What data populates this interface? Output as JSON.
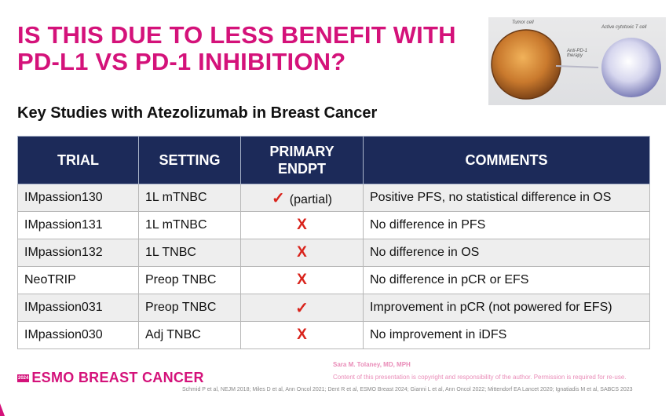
{
  "title": {
    "line1": "IS THIS DUE TO LESS BENEFIT WITH",
    "line2": "PD-L1 VS PD-1 INHIBITION?"
  },
  "image": {
    "tumor_label": "Tumor cell",
    "therapy_label": "Anti-PD-1 therapy",
    "tcell_label": "Active cytotoxic T cell"
  },
  "subtitle": "Key Studies with Atezolizumab in Breast Cancer",
  "table": {
    "headers": [
      "TRIAL",
      "SETTING",
      "PRIMARY ENDPT",
      "COMMENTS"
    ],
    "rows": [
      {
        "trial": "IMpassion130",
        "setting": "1L mTNBC",
        "mark": "✓",
        "mark_note": "(partial)",
        "comment": "Positive PFS, no statistical difference in OS"
      },
      {
        "trial": "IMpassion131",
        "setting": "1L mTNBC",
        "mark": "X",
        "mark_note": "",
        "comment": "No difference in PFS"
      },
      {
        "trial": "IMpassion132",
        "setting": "1L TNBC",
        "mark": "X",
        "mark_note": "",
        "comment": "No difference in OS"
      },
      {
        "trial": "NeoTRIP",
        "setting": "Preop TNBC",
        "mark": "X",
        "mark_note": "",
        "comment": "No difference in pCR or EFS"
      },
      {
        "trial": "IMpassion031",
        "setting": "Preop TNBC",
        "mark": "✓",
        "mark_note": "",
        "comment": "Improvement in pCR (not powered for EFS)"
      },
      {
        "trial": "IMpassion030",
        "setting": "Adj TNBC",
        "mark": "X",
        "mark_note": "",
        "comment": "No improvement in iDFS"
      }
    ]
  },
  "footer": {
    "logo_year": "2024",
    "logo_name": "ESMO BREAST CANCER",
    "author": "Sara M. Tolaney, MD, MPH",
    "copyright": "Content of this presentation is copyright and responsibility of the author. Permission is required for re-use.",
    "references": "Schmid P et al, NEJM 2018; Miles D et al, Ann Oncol 2021; Dent R et al, ESMO Breast 2024; Gianni L et al, Ann Oncol 2022; Mittendorf EA Lancet 2020; Ignatiadis M et al, SABCS 2023"
  },
  "colors": {
    "accent": "#d4127a",
    "header_bg": "#1c2a59",
    "mark": "#d9231b"
  }
}
